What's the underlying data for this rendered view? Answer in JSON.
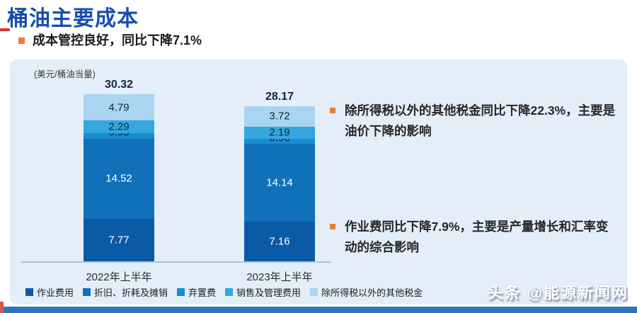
{
  "header": {
    "title": "桶油主要成本",
    "subtitle": "成本管控良好，同比下降7.1%"
  },
  "panel": {
    "unit_label": "(美元/桶油当量)"
  },
  "chart_data": {
    "type": "bar",
    "stacked": true,
    "title": "桶油主要成本",
    "unit": "美元/桶油当量",
    "categories": [
      "2022年上半年",
      "2023年上半年"
    ],
    "totals": [
      30.32,
      28.17
    ],
    "series": [
      {
        "name": "作业费用",
        "values": [
          7.77,
          7.16
        ],
        "color": "#0b5aa5",
        "value_color": "#ffffff"
      },
      {
        "name": "折旧、折耗及摊销",
        "values": [
          14.52,
          14.14
        ],
        "color": "#1171b8",
        "value_color": "#ffffff"
      },
      {
        "name": "弃置费",
        "values": [
          0.95,
          0.96
        ],
        "color": "#1a8ed1",
        "value_color": "#12263f"
      },
      {
        "name": "销售及管理费用",
        "values": [
          2.29,
          2.19
        ],
        "color": "#33a7de",
        "value_color": "#12263f"
      },
      {
        "name": "除所得税以外的其他税金",
        "values": [
          4.79,
          3.72
        ],
        "color": "#a9d5f0",
        "value_color": "#12263f"
      }
    ],
    "legend_position": "bottom",
    "grid": false,
    "ylim": [
      0,
      32
    ]
  },
  "annotations": [
    {
      "text": "除所得税以外的其他税金同比下降22.3%，主要是油价下降的影响"
    },
    {
      "text": "作业费同比下降7.9%，主要是产量增长和汇率变动的综合影响"
    }
  ],
  "watermark": "头条 @能源新闻网",
  "colors": {
    "title_blue": "#164fae",
    "accent_red": "#cf3732",
    "accent_orange": "#e2813b",
    "panel_bg": "#e4eef8",
    "footer_bar": "#2d74b9",
    "total_label": "#12263f"
  }
}
